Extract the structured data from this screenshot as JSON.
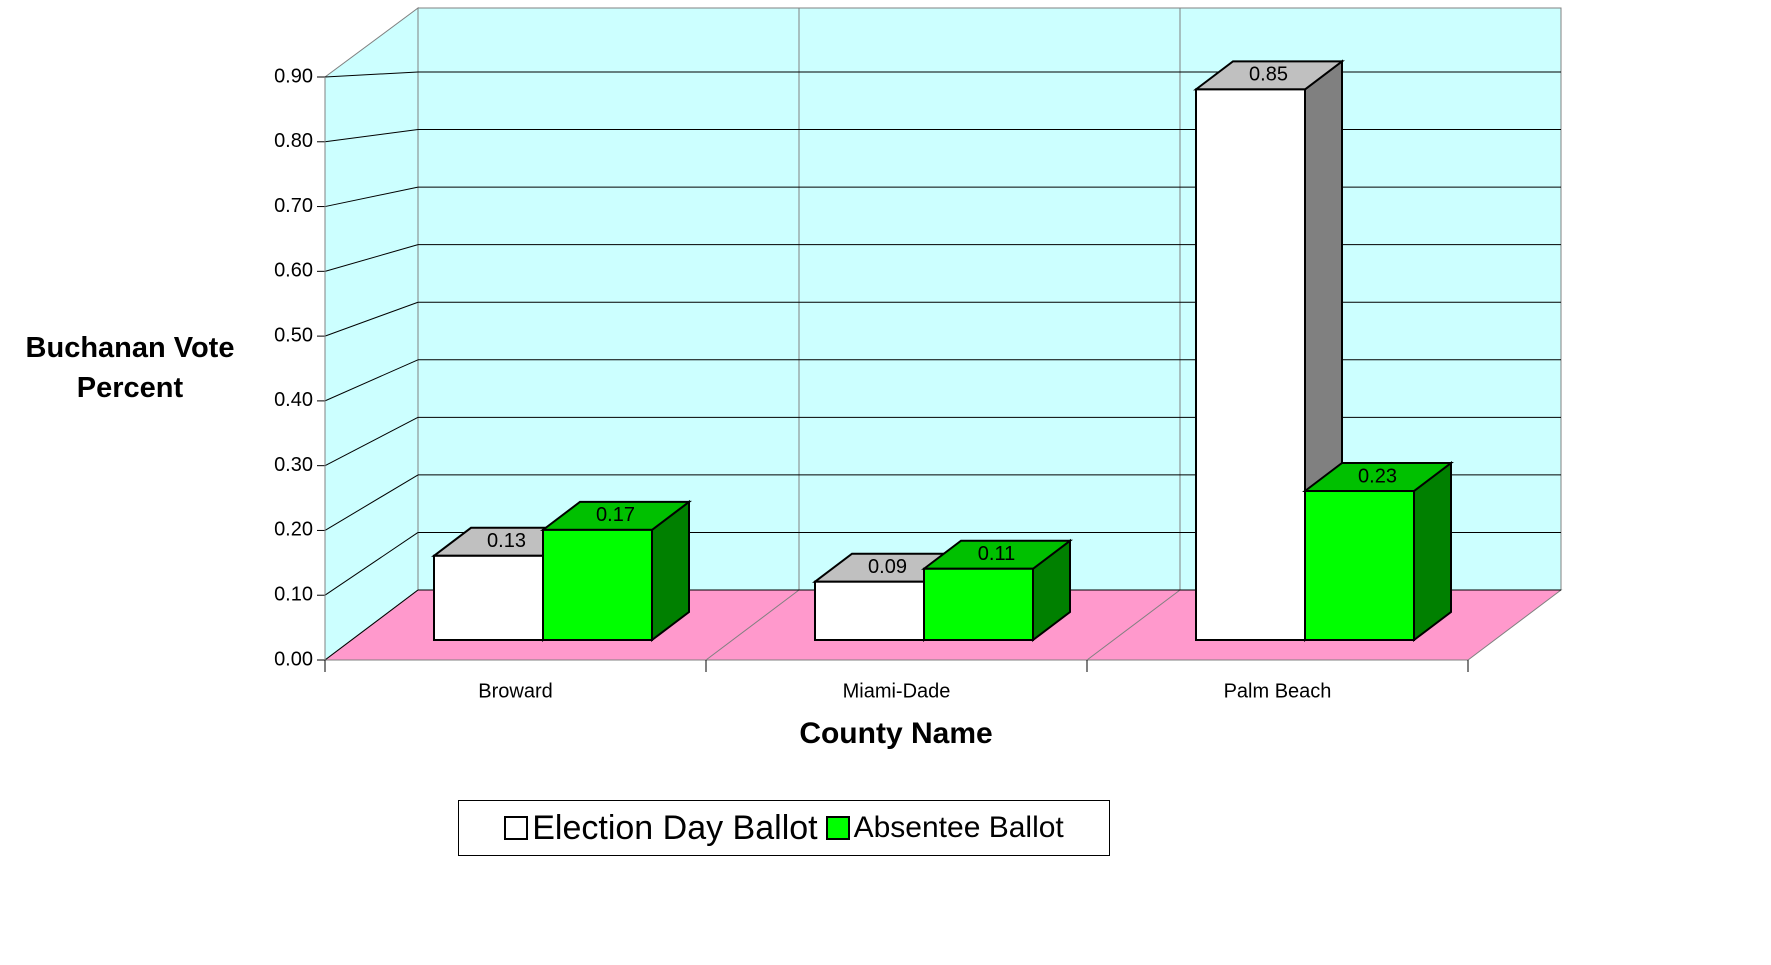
{
  "chart_data": {
    "type": "bar3d",
    "x_label": "County Name",
    "y_label": "Buchanan Vote Percent",
    "categories": [
      "Broward",
      "Miami-Dade",
      "Palm Beach"
    ],
    "series": [
      {
        "name": "Election Day Ballot",
        "color": "#ffffff",
        "side_color": "#808080",
        "top_color": "#c0c0c0",
        "values": [
          0.13,
          0.09,
          0.85
        ]
      },
      {
        "name": "Absentee Ballot",
        "color": "#00ff00",
        "side_color": "#008000",
        "top_color": "#00c000",
        "values": [
          0.17,
          0.11,
          0.23
        ]
      }
    ],
    "ylim": [
      0,
      0.9
    ],
    "yticks": [
      {
        "value": 0,
        "label": "0.00"
      },
      {
        "value": 0.1,
        "label": "0.10"
      },
      {
        "value": 0.2,
        "label": "0.20"
      },
      {
        "value": 0.3,
        "label": "0.30"
      },
      {
        "value": 0.4,
        "label": "0.40"
      },
      {
        "value": 0.5,
        "label": "0.50"
      },
      {
        "value": 0.6,
        "label": "0.60"
      },
      {
        "value": 0.7,
        "label": "0.70"
      },
      {
        "value": 0.8,
        "label": "0.80"
      },
      {
        "value": 0.9,
        "label": "0.90"
      }
    ],
    "grid": true,
    "wall_color": "#ccffff",
    "floor_color": "#ff99cc",
    "legend": "bottom"
  }
}
